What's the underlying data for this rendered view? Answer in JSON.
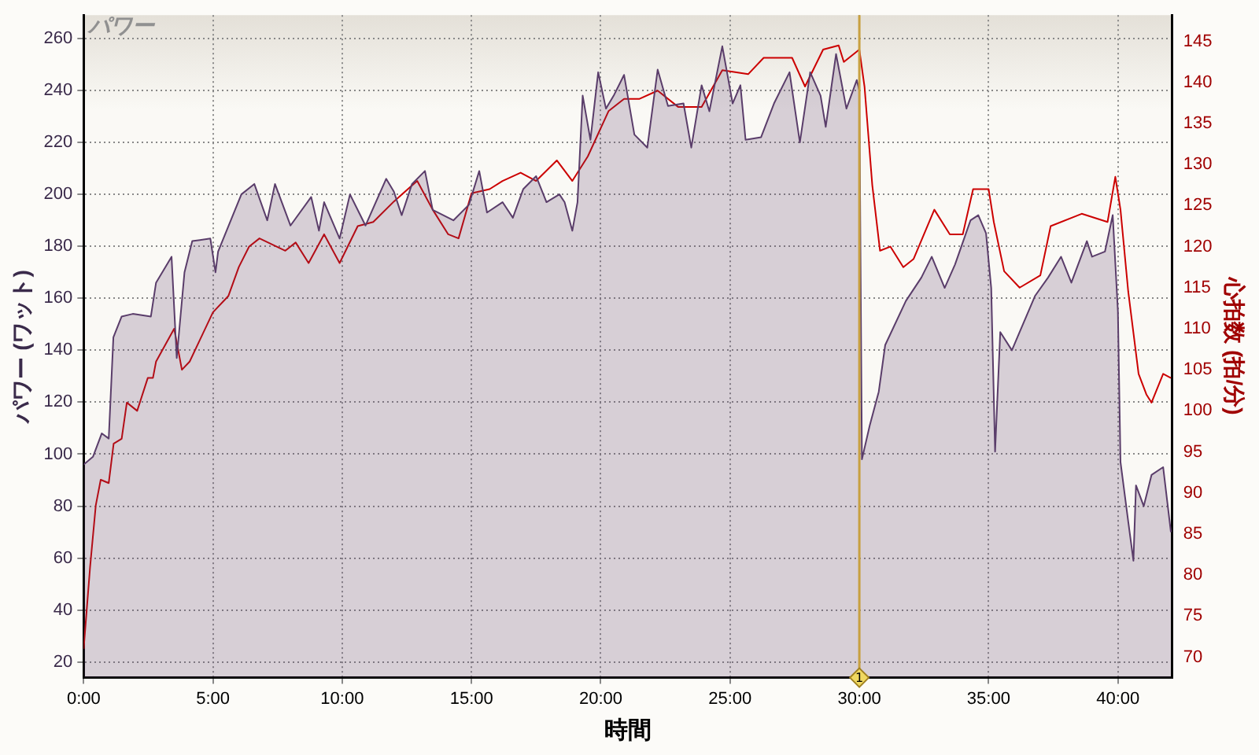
{
  "chart_data": {
    "type": "area",
    "title": "パワー",
    "xlabel": "時間",
    "ylabel": "パワー (ワット)",
    "y2label": "心拍数 (拍/分)",
    "xlim": [
      0,
      42.1
    ],
    "xticks": [
      {
        "value": 0,
        "label": "0:00"
      },
      {
        "value": 5,
        "label": "5:00"
      },
      {
        "value": 10,
        "label": "10:00"
      },
      {
        "value": 15,
        "label": "15:00"
      },
      {
        "value": 20,
        "label": "20:00"
      },
      {
        "value": 25,
        "label": "25:00"
      },
      {
        "value": 30,
        "label": "30:00"
      },
      {
        "value": 35,
        "label": "35:00"
      },
      {
        "value": 40,
        "label": "40:00"
      }
    ],
    "ylim": [
      14,
      269
    ],
    "yticks": [
      20,
      40,
      60,
      80,
      100,
      120,
      140,
      160,
      180,
      200,
      220,
      240,
      260
    ],
    "y2lim": [
      67.5,
      148.2
    ],
    "y2ticks": [
      70,
      75,
      80,
      85,
      90,
      95,
      100,
      105,
      110,
      115,
      120,
      125,
      130,
      135,
      140,
      145
    ],
    "grid": true,
    "legend": false,
    "marker": "none",
    "line_style": "solid",
    "ref_lines": [
      {
        "axis": "x",
        "value": 30,
        "color": "#c8a040"
      }
    ],
    "annotations": [
      {
        "text": "1",
        "x": 30
      }
    ],
    "series": [
      {
        "color": "#5a3d6a",
        "x": [
          0,
          0.36,
          0.7,
          0.97,
          1.15,
          1.47,
          1.9,
          2.6,
          2.8,
          3.4,
          3.6,
          3.9,
          4.2,
          4.9,
          5.1,
          5.2,
          6.1,
          6.6,
          7.1,
          7.4,
          8.0,
          8.8,
          9.1,
          9.3,
          9.9,
          10.3,
          10.9,
          11.7,
          12.0,
          12.3,
          12.7,
          13.2,
          13.5,
          14.3,
          14.9,
          15.3,
          15.6,
          16.2,
          16.6,
          17.0,
          17.5,
          17.9,
          18.4,
          18.6,
          18.9,
          19.1,
          19.3,
          19.6,
          19.9,
          20.2,
          20.5,
          20.9,
          21.3,
          21.8,
          22.2,
          22.6,
          23.2,
          23.5,
          23.9,
          24.2,
          24.7,
          25.1,
          25.4,
          25.6,
          26.2,
          26.7,
          27.3,
          27.7,
          28.1,
          28.5,
          28.7,
          29.1,
          29.5,
          29.9,
          30.0,
          30.1,
          30.4,
          30.75,
          31.0,
          31.8,
          32.4,
          32.8,
          33.3,
          33.7,
          34.3,
          34.6,
          34.9,
          35.1,
          35.25,
          35.45,
          35.9,
          36.2,
          36.8,
          37.3,
          37.8,
          38.2,
          38.8,
          39.0,
          39.5,
          39.8,
          40.0,
          40.1,
          40.4,
          40.6,
          40.7,
          41.0,
          41.3,
          41.75,
          42.05
        ],
        "values": [
          96,
          99,
          108,
          106,
          145,
          153,
          154,
          153,
          166,
          176,
          137,
          170,
          182,
          183,
          170,
          178,
          200,
          204,
          190,
          204,
          188,
          199,
          186,
          197,
          183,
          200,
          188,
          206,
          201,
          192,
          204,
          209,
          194,
          190,
          196,
          209,
          193,
          197,
          191,
          202,
          207,
          197,
          200,
          197,
          186,
          197,
          238,
          221,
          247,
          233,
          238,
          246,
          223,
          218,
          248,
          234,
          235,
          218,
          242,
          232,
          257,
          235,
          242,
          221,
          222,
          235,
          247,
          220,
          247,
          238,
          226,
          254,
          233,
          244,
          240,
          98,
          111,
          124,
          142,
          159,
          168,
          176,
          164,
          173,
          190,
          192,
          185,
          164,
          101,
          147,
          140,
          147,
          161,
          168,
          176,
          166,
          182,
          176,
          178,
          192,
          155,
          97,
          74,
          59,
          88,
          80,
          92,
          95,
          70
        ]
      },
      {
        "type": "line",
        "axis": "y2",
        "color": "#cc0000",
        "x": [
          0,
          0.25,
          0.47,
          0.66,
          0.97,
          1.16,
          1.47,
          1.67,
          2.07,
          2.48,
          2.68,
          2.8,
          3.5,
          3.8,
          4.1,
          5.0,
          5.6,
          6.0,
          6.4,
          6.8,
          7.8,
          8.2,
          8.7,
          9.3,
          9.9,
          10.6,
          11.2,
          12.0,
          12.9,
          13.5,
          14.1,
          14.5,
          15.0,
          15.7,
          16.2,
          16.9,
          17.5,
          18.3,
          18.9,
          19.5,
          20.3,
          20.9,
          21.5,
          22.2,
          23.0,
          23.9,
          24.7,
          25.7,
          26.3,
          27.4,
          27.9,
          28.6,
          29.2,
          29.4,
          30.0,
          30.2,
          30.5,
          30.8,
          31.2,
          31.7,
          32.1,
          32.9,
          33.5,
          34.0,
          34.4,
          35.0,
          35.2,
          35.6,
          36.2,
          37.0,
          37.4,
          38.6,
          39.6,
          39.9,
          40.1,
          40.4,
          40.8,
          41.1,
          41.3,
          41.75,
          42.05
        ],
        "values": [
          71,
          81,
          88.5,
          91.6,
          91.2,
          96,
          96.6,
          101,
          100,
          104,
          104,
          106,
          110,
          105,
          106,
          112,
          114,
          117.5,
          120,
          121,
          119.5,
          120.5,
          118,
          121.5,
          118,
          122.5,
          123,
          125.5,
          128,
          124.5,
          121.5,
          121,
          126.5,
          127,
          128,
          129,
          128,
          130.5,
          128,
          131,
          136.5,
          138,
          138,
          139,
          137,
          137,
          141.5,
          141,
          143,
          143,
          139.5,
          144,
          144.5,
          142.5,
          144,
          139.5,
          127.5,
          119.5,
          120,
          117.5,
          118.5,
          124.5,
          121.5,
          121.5,
          127,
          127,
          123,
          117,
          115,
          116.5,
          122.5,
          124,
          123,
          128.5,
          124.5,
          114.5,
          104.5,
          102,
          101,
          104.5,
          104
        ]
      }
    ]
  }
}
